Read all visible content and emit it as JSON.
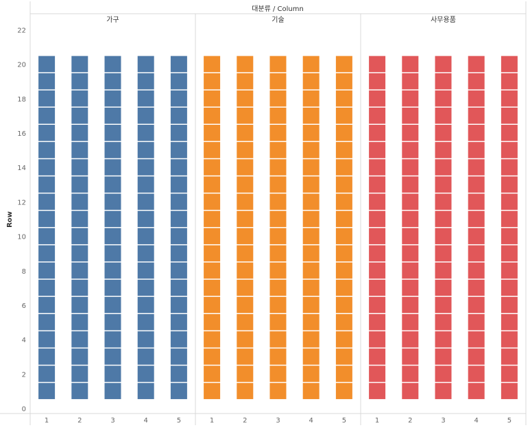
{
  "chart_data": {
    "type": "bar",
    "title": "대분류 / Column",
    "ylabel": "Row",
    "xlabel": "",
    "ylim": [
      0,
      22
    ],
    "yticks": [
      0,
      2,
      4,
      6,
      8,
      10,
      12,
      14,
      16,
      18,
      20,
      22
    ],
    "categories": [
      "1",
      "2",
      "3",
      "4",
      "5"
    ],
    "series": [
      {
        "name": "가구",
        "color": "#4e79a7",
        "values": [
          20,
          20,
          20,
          20,
          20
        ]
      },
      {
        "name": "기술",
        "color": "#f28e2b",
        "values": [
          20,
          20,
          20,
          20,
          20
        ]
      },
      {
        "name": "사무용품",
        "color": "#e15759",
        "values": [
          20,
          20,
          20,
          20,
          20
        ]
      }
    ],
    "grid": false
  }
}
